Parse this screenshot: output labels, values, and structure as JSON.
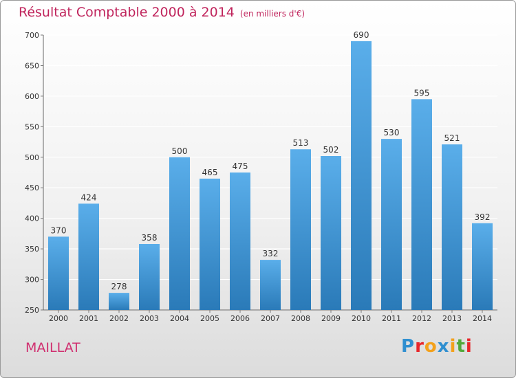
{
  "header": {
    "title": "Résultat Comptable 2000 à 2014",
    "subtitle": "(en milliers d'€)"
  },
  "commune": "MAILLAT",
  "logo": {
    "letters": [
      "P",
      "r",
      "o",
      "x",
      "i",
      "t",
      "i"
    ],
    "colors": [
      "#2f8fd0",
      "#e8262a",
      "#f3a11b",
      "#2f8fd0",
      "#f3a11b",
      "#52a83a",
      "#e8262a"
    ]
  },
  "colors": {
    "bar_top": "#5aaeea",
    "bar_bottom": "#2a7ab8",
    "grid": "#ffffff",
    "text_accent": "#c0245c"
  },
  "chart_data": {
    "type": "bar",
    "title": "Résultat Comptable 2000 à 2014",
    "subtitle": "(en milliers d'€)",
    "categories": [
      "2000",
      "2001",
      "2002",
      "2003",
      "2004",
      "2005",
      "2006",
      "2007",
      "2008",
      "2009",
      "2010",
      "2011",
      "2012",
      "2013",
      "2014"
    ],
    "values": [
      370,
      424,
      278,
      358,
      500,
      465,
      475,
      332,
      513,
      502,
      690,
      530,
      595,
      521,
      392
    ],
    "ylim": [
      250,
      700
    ],
    "yticks": [
      250,
      300,
      350,
      400,
      450,
      500,
      550,
      600,
      650,
      700
    ],
    "grid": true,
    "xlabel": "",
    "ylabel": ""
  }
}
